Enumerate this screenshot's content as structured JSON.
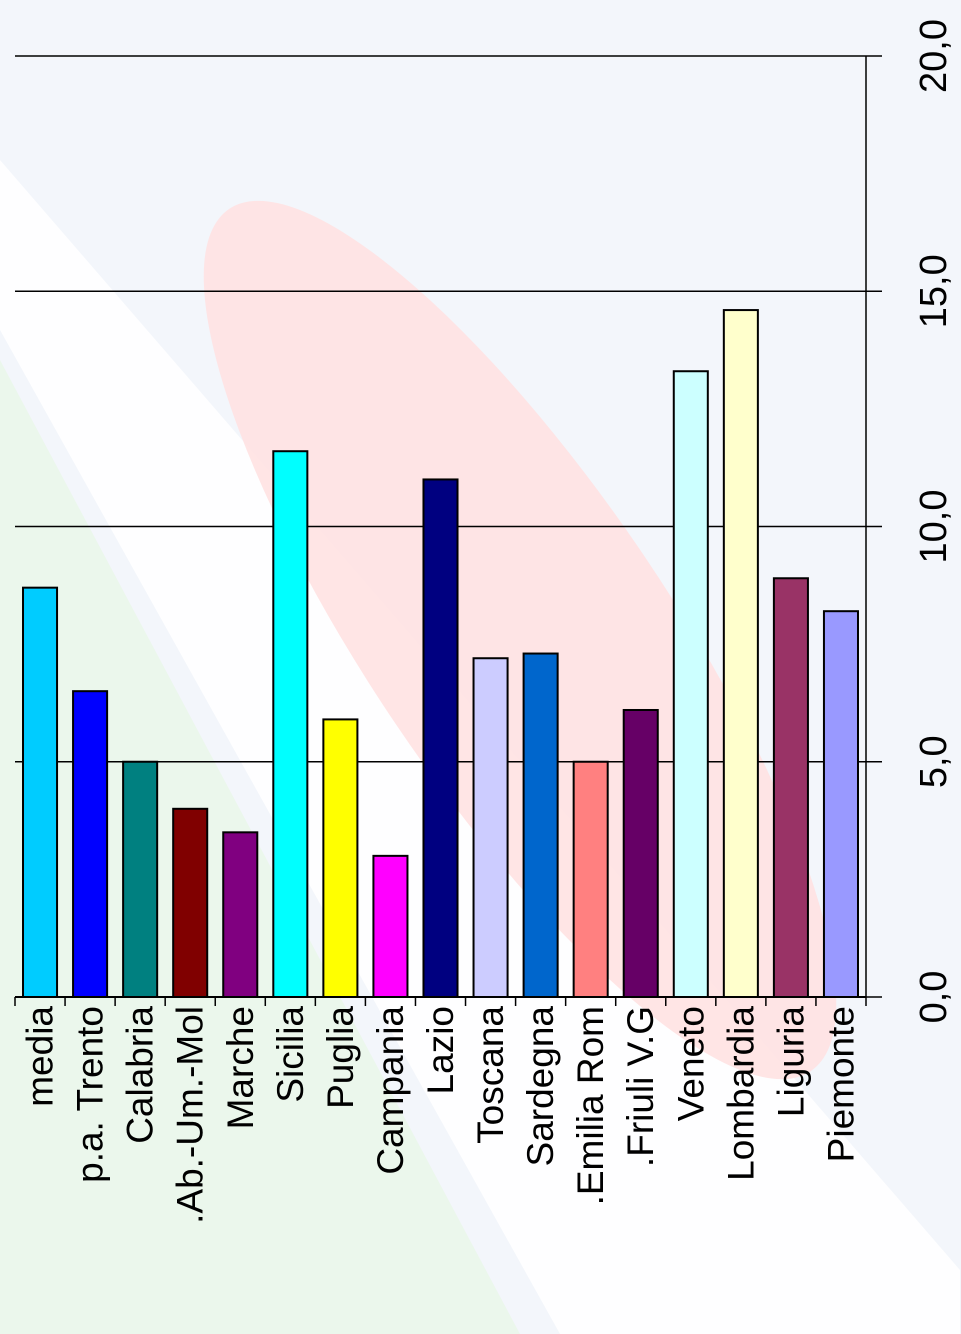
{
  "chart_data": {
    "type": "bar",
    "orientation": "rotated-90-clockwise",
    "categories": [
      "media",
      "p.a. Trento",
      "Calabria",
      ".Ab.-Um.-Mol",
      "Marche",
      "Sicilia",
      "Puglia",
      "Campania",
      "Lazio",
      "Toscana",
      "Sardegna",
      ".Emilia Rom",
      ".Friuli V.G",
      "Veneto",
      "Lombardia",
      "Liguria",
      "Piemonte"
    ],
    "values": [
      8.7,
      6.5,
      5.0,
      4.0,
      3.5,
      11.6,
      5.9,
      3.0,
      11.0,
      7.2,
      7.3,
      5.0,
      6.1,
      13.3,
      14.6,
      8.9,
      8.2
    ],
    "colors": [
      "#00ccff",
      "#0000ff",
      "#008080",
      "#800000",
      "#800080",
      "#00ffff",
      "#ffff00",
      "#ff00ff",
      "#000080",
      "#ccccff",
      "#0066cc",
      "#ff8080",
      "#660066",
      "#ccffff",
      "#ffffcc",
      "#993366",
      "#9999ff"
    ],
    "yticks": [
      "0,0",
      "5,0",
      "10,0",
      "15,0",
      "20,0"
    ],
    "ylim": [
      0,
      20
    ],
    "grid": true,
    "title": "",
    "xlabel": "",
    "ylabel": ""
  }
}
